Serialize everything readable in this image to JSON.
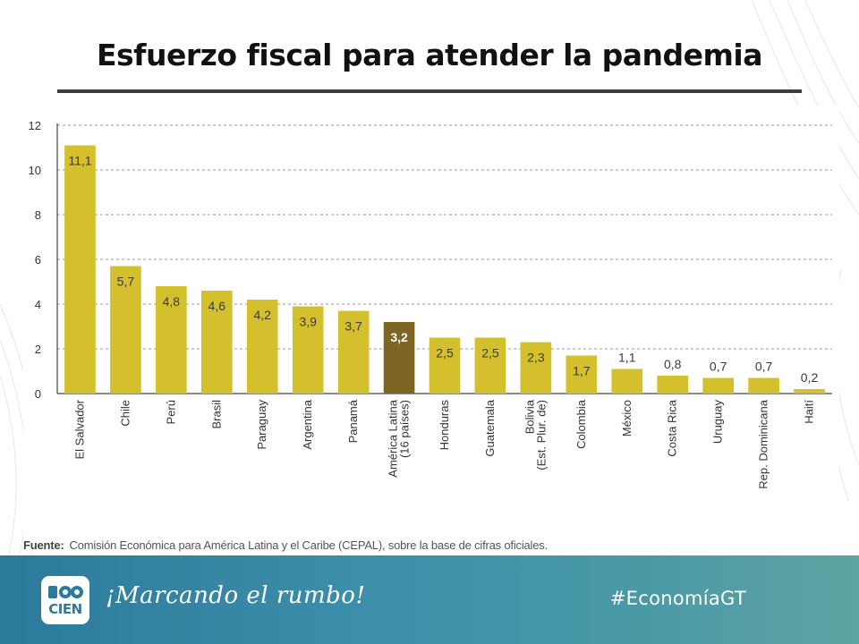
{
  "slide": {
    "title": "Esfuerzo fiscal para atender la pandemia"
  },
  "source": {
    "label": "Fuente:",
    "text": "Comisión Económica para América Latina y el Caribe (CEPAL), sobre la base de cifras oficiales."
  },
  "footer": {
    "logo_text": "CIEN",
    "slogan": "¡Marcando el rumbo!",
    "hashtag": "#EconomíaGT"
  },
  "colors": {
    "bar": "#d4bf2d",
    "highlight_bar": "#7d6624",
    "grid": "#9a9a9a",
    "axis": "#444444"
  },
  "chart_data": {
    "type": "bar",
    "title": "",
    "xlabel": "",
    "ylabel": "",
    "ylim": [
      0,
      12
    ],
    "yticks": [
      0,
      2,
      4,
      6,
      8,
      10,
      12
    ],
    "grid": true,
    "categories": [
      [
        "El Salvador"
      ],
      [
        "Chile"
      ],
      [
        "Perú"
      ],
      [
        "Brasil"
      ],
      [
        "Paraguay"
      ],
      [
        "Argentina"
      ],
      [
        "Panamá"
      ],
      [
        "América Latina",
        "(16 países)"
      ],
      [
        "Honduras"
      ],
      [
        "Guatemala"
      ],
      [
        "Bolivia",
        "(Est. Plur. de)"
      ],
      [
        "Colombia"
      ],
      [
        "México"
      ],
      [
        "Costa Rica"
      ],
      [
        "Uruguay"
      ],
      [
        "Rep. Dominicana"
      ],
      [
        "Haití"
      ]
    ],
    "values": [
      11.1,
      5.7,
      4.8,
      4.6,
      4.2,
      3.9,
      3.7,
      3.2,
      2.5,
      2.5,
      2.3,
      1.7,
      1.1,
      0.8,
      0.7,
      0.7,
      0.2
    ],
    "value_labels": [
      "11,1",
      "5,7",
      "4,8",
      "4,6",
      "4,2",
      "3,9",
      "3,7",
      "3,2",
      "2,5",
      "2,5",
      "2,3",
      "1,7",
      "1,1",
      "0,8",
      "0,7",
      "0,7",
      "0,2"
    ],
    "highlight_index": 7
  }
}
